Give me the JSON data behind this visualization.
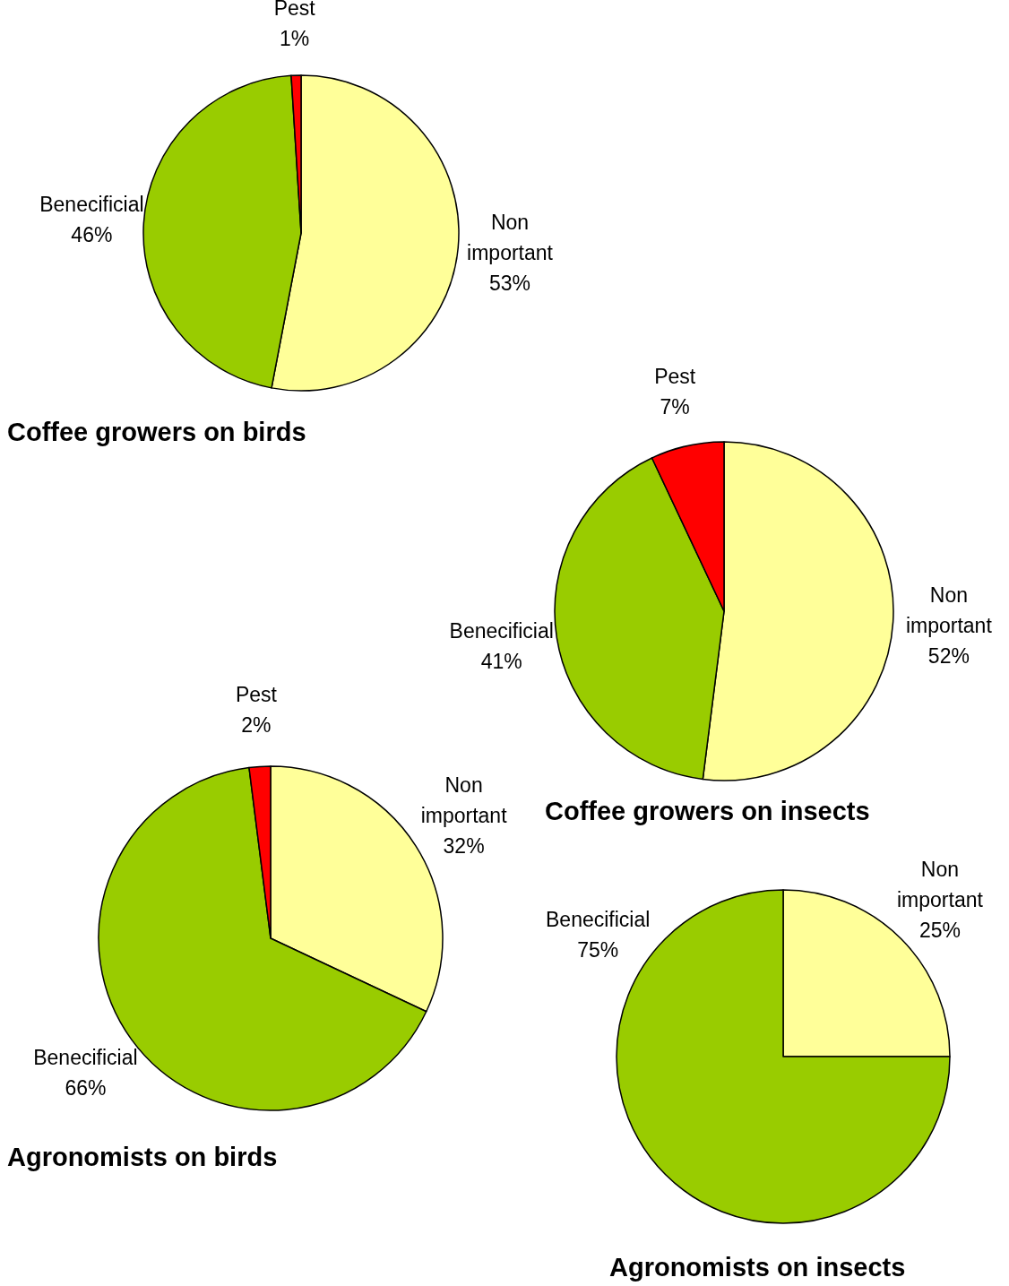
{
  "chart_data": [
    {
      "type": "pie",
      "title": "Coffee growers on birds",
      "categories": [
        "Non important",
        "Benecificial",
        "Pest"
      ],
      "values": [
        53,
        46,
        1
      ],
      "value_labels": [
        "53%",
        "46%",
        "1%"
      ],
      "colors": [
        "#ffff99",
        "#99cc00",
        "#ff0000"
      ]
    },
    {
      "type": "pie",
      "title": "Coffee growers on insects",
      "categories": [
        "Non important",
        "Benecificial",
        "Pest"
      ],
      "values": [
        52,
        41,
        7
      ],
      "value_labels": [
        "52%",
        "41%",
        "7%"
      ],
      "colors": [
        "#ffff99",
        "#99cc00",
        "#ff0000"
      ]
    },
    {
      "type": "pie",
      "title": "Agronomists on birds",
      "categories": [
        "Non important",
        "Benecificial",
        "Pest"
      ],
      "values": [
        32,
        66,
        2
      ],
      "value_labels": [
        "32%",
        "66%",
        "2%"
      ],
      "colors": [
        "#ffff99",
        "#99cc00",
        "#ff0000"
      ]
    },
    {
      "type": "pie",
      "title": "Agronomists on insects",
      "categories": [
        "Non important",
        "Benecificial"
      ],
      "values": [
        25,
        75
      ],
      "value_labels": [
        "25%",
        "75%"
      ],
      "colors": [
        "#ffff99",
        "#99cc00"
      ]
    }
  ]
}
